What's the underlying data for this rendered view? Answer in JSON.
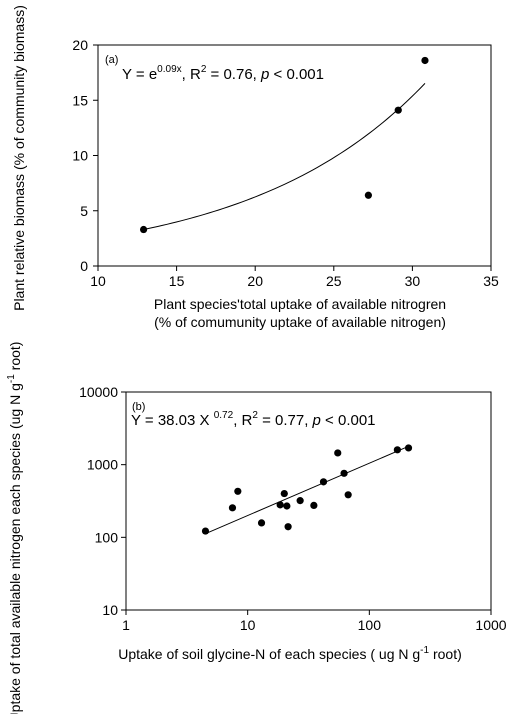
{
  "chart_data": [
    {
      "type": "scatter",
      "panel_label": "(a)",
      "annotation": {
        "pre": "Y = e",
        "exp": "0.09x",
        "mid": ", R",
        "r2sup": "2",
        "eq": " = 0.76, ",
        "p": "p",
        "post": " < 0.001"
      },
      "xlabel_line1": "Plant species'total uptake of available nitrogren",
      "xlabel_line2": "(% of comumunity uptake of available nitrogen)",
      "ylabel": "Plant relative biomass (% of community biomass)",
      "xlim": [
        10,
        35
      ],
      "ylim": [
        0,
        20
      ],
      "xticks": [
        10,
        15,
        20,
        25,
        30,
        35
      ],
      "yticks": [
        0,
        5,
        10,
        15,
        20
      ],
      "xtick_labels": [
        "10",
        "15",
        "20",
        "25",
        "30",
        "35"
      ],
      "ytick_labels": [
        "0",
        "5",
        "10",
        "15",
        "20"
      ],
      "x": [
        12.9,
        27.2,
        29.1,
        30.8
      ],
      "y": [
        3.3,
        6.4,
        14.1,
        18.6
      ],
      "fit": {
        "type": "exponential",
        "coefficient": 0.09,
        "x_range": [
          12.9,
          30.8
        ]
      },
      "grid": false
    },
    {
      "type": "scatter",
      "panel_label": "(b)",
      "annotation": {
        "pre": "Y = 38.03 X ",
        "exp": "0.72",
        "mid": ", R",
        "r2sup": "2",
        "eq": " = 0.77, ",
        "p": "p",
        "post": " < 0.001"
      },
      "xlabel_pre": "Uptake of soil glycine-N of each species ( ug N g",
      "xlabel_sup": "-1",
      "xlabel_post": " root)",
      "ylabel_pre": "Uptake of total available nitrogen each species (ug N g",
      "ylabel_sup": "-1",
      "ylabel_post": " root)",
      "xscale": "log",
      "yscale": "log",
      "xlim": [
        1,
        1000
      ],
      "ylim": [
        10,
        10000
      ],
      "xticks": [
        1,
        10,
        100,
        1000
      ],
      "yticks": [
        10,
        100,
        1000,
        10000
      ],
      "xtick_labels": [
        "1",
        "10",
        "100",
        "1000"
      ],
      "ytick_labels": [
        "10",
        "100",
        "1000",
        "10000"
      ],
      "x": [
        4.5,
        7.5,
        8.3,
        13,
        18.5,
        20,
        21,
        21.5,
        27,
        35,
        42,
        55,
        62,
        67,
        170,
        210
      ],
      "y": [
        122,
        255,
        430,
        158,
        280,
        400,
        270,
        140,
        320,
        275,
        580,
        1450,
        760,
        385,
        1600,
        1700
      ],
      "fit": {
        "type": "power",
        "a": 38.03,
        "b": 0.72,
        "x_range": [
          4.5,
          210
        ]
      },
      "grid": false
    }
  ]
}
